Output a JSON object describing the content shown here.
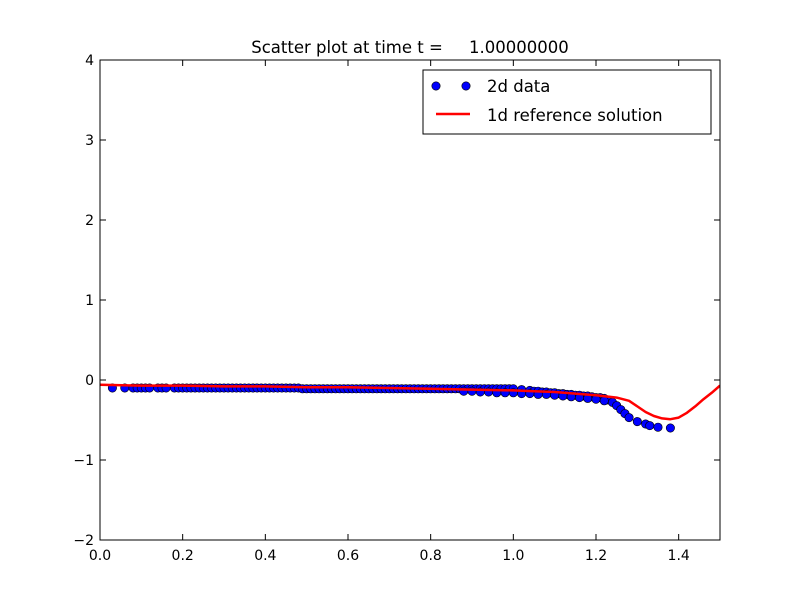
{
  "chart_data": {
    "type": "scatter",
    "title": "Scatter plot at time t =     1.00000000",
    "xlabel": "",
    "ylabel": "",
    "xlim": [
      0.0,
      1.5
    ],
    "ylim": [
      -2,
      4
    ],
    "xticks": [
      0.0,
      0.2,
      0.4,
      0.6,
      0.8,
      1.0,
      1.2,
      1.4
    ],
    "yticks": [
      -2,
      -1,
      0,
      1,
      2,
      3,
      4
    ],
    "xtick_labels": [
      "0.0",
      "0.2",
      "0.4",
      "0.6",
      "0.8",
      "1.0",
      "1.2",
      "1.4"
    ],
    "ytick_labels": [
      "−2",
      "−1",
      "0",
      "1",
      "2",
      "3",
      "4"
    ],
    "grid": false,
    "legend_position": "top-right",
    "colors": {
      "scatter": "#0000ff",
      "reference": "#ff0000"
    },
    "series": [
      {
        "name": "2d data",
        "kind": "scatter",
        "x": [
          0.03,
          0.06,
          0.08,
          0.09,
          0.1,
          0.11,
          0.12,
          0.14,
          0.15,
          0.16,
          0.18,
          0.19,
          0.2,
          0.21,
          0.22,
          0.23,
          0.24,
          0.25,
          0.26,
          0.27,
          0.28,
          0.29,
          0.3,
          0.31,
          0.32,
          0.33,
          0.34,
          0.35,
          0.36,
          0.37,
          0.38,
          0.39,
          0.4,
          0.41,
          0.42,
          0.43,
          0.44,
          0.45,
          0.46,
          0.47,
          0.48,
          0.49,
          0.5,
          0.51,
          0.52,
          0.53,
          0.54,
          0.55,
          0.56,
          0.57,
          0.58,
          0.59,
          0.6,
          0.61,
          0.62,
          0.63,
          0.64,
          0.65,
          0.66,
          0.67,
          0.68,
          0.69,
          0.7,
          0.71,
          0.72,
          0.73,
          0.74,
          0.75,
          0.76,
          0.77,
          0.78,
          0.79,
          0.8,
          0.81,
          0.82,
          0.83,
          0.84,
          0.85,
          0.86,
          0.87,
          0.88,
          0.89,
          0.9,
          0.91,
          0.92,
          0.93,
          0.94,
          0.95,
          0.96,
          0.97,
          0.98,
          0.99,
          1.0,
          1.02,
          1.04,
          1.05,
          1.06,
          1.07,
          1.08,
          1.09,
          1.1,
          1.11,
          1.12,
          1.13,
          1.14,
          1.15,
          1.16,
          1.17,
          1.18,
          1.19,
          1.2,
          1.21,
          1.22,
          1.23,
          1.24,
          1.25,
          1.26,
          1.27,
          1.28,
          1.3,
          1.32,
          1.33,
          1.35,
          1.38,
          0.88,
          0.9,
          0.92,
          0.94,
          0.96,
          0.98,
          1.0,
          1.02,
          1.04,
          1.06,
          1.08,
          1.1,
          1.12,
          1.14,
          1.16,
          1.18,
          1.2,
          1.22
        ],
        "y": [
          -0.1,
          -0.1,
          -0.1,
          -0.1,
          -0.1,
          -0.1,
          -0.1,
          -0.1,
          -0.1,
          -0.1,
          -0.1,
          -0.1,
          -0.1,
          -0.1,
          -0.1,
          -0.1,
          -0.1,
          -0.1,
          -0.1,
          -0.1,
          -0.1,
          -0.1,
          -0.1,
          -0.1,
          -0.1,
          -0.1,
          -0.1,
          -0.1,
          -0.1,
          -0.1,
          -0.1,
          -0.1,
          -0.1,
          -0.1,
          -0.1,
          -0.1,
          -0.1,
          -0.1,
          -0.1,
          -0.1,
          -0.1,
          -0.11,
          -0.11,
          -0.11,
          -0.11,
          -0.11,
          -0.11,
          -0.11,
          -0.11,
          -0.11,
          -0.11,
          -0.11,
          -0.11,
          -0.11,
          -0.11,
          -0.11,
          -0.11,
          -0.11,
          -0.11,
          -0.11,
          -0.11,
          -0.11,
          -0.11,
          -0.11,
          -0.11,
          -0.11,
          -0.11,
          -0.11,
          -0.11,
          -0.11,
          -0.11,
          -0.11,
          -0.11,
          -0.11,
          -0.11,
          -0.11,
          -0.11,
          -0.11,
          -0.11,
          -0.11,
          -0.11,
          -0.11,
          -0.11,
          -0.11,
          -0.11,
          -0.11,
          -0.11,
          -0.11,
          -0.11,
          -0.11,
          -0.11,
          -0.11,
          -0.11,
          -0.12,
          -0.13,
          -0.14,
          -0.14,
          -0.15,
          -0.15,
          -0.16,
          -0.16,
          -0.17,
          -0.17,
          -0.18,
          -0.18,
          -0.19,
          -0.19,
          -0.2,
          -0.2,
          -0.21,
          -0.22,
          -0.22,
          -0.23,
          -0.25,
          -0.28,
          -0.32,
          -0.37,
          -0.42,
          -0.47,
          -0.52,
          -0.55,
          -0.57,
          -0.59,
          -0.6,
          -0.14,
          -0.14,
          -0.15,
          -0.15,
          -0.16,
          -0.16,
          -0.16,
          -0.17,
          -0.17,
          -0.18,
          -0.18,
          -0.19,
          -0.2,
          -0.21,
          -0.22,
          -0.23,
          -0.24,
          -0.26
        ]
      },
      {
        "name": "1d reference solution",
        "kind": "line",
        "x": [
          0.0,
          0.1,
          0.2,
          0.3,
          0.4,
          0.5,
          0.6,
          0.7,
          0.8,
          0.9,
          1.0,
          1.05,
          1.1,
          1.15,
          1.2,
          1.25,
          1.28,
          1.3,
          1.32,
          1.34,
          1.36,
          1.38,
          1.4,
          1.42,
          1.44,
          1.46,
          1.48,
          1.5
        ],
        "y": [
          -0.06,
          -0.07,
          -0.07,
          -0.08,
          -0.08,
          -0.09,
          -0.09,
          -0.1,
          -0.11,
          -0.12,
          -0.13,
          -0.14,
          -0.15,
          -0.17,
          -0.19,
          -0.22,
          -0.26,
          -0.33,
          -0.4,
          -0.45,
          -0.48,
          -0.49,
          -0.47,
          -0.41,
          -0.33,
          -0.24,
          -0.16,
          -0.07
        ]
      }
    ]
  }
}
